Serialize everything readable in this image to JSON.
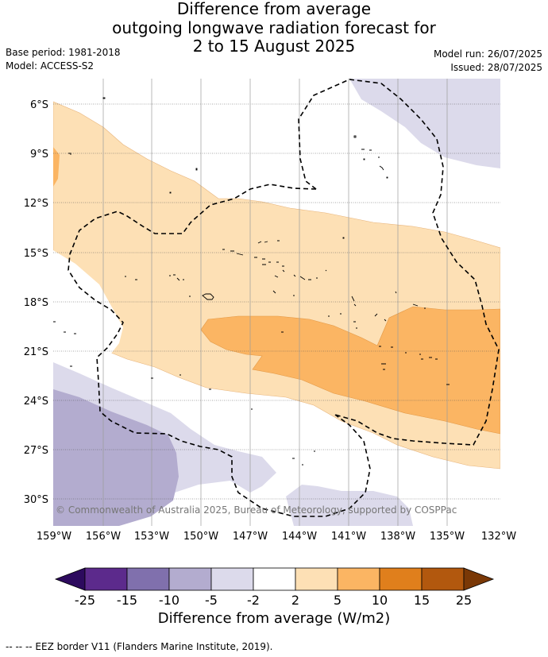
{
  "title_lines": [
    "Difference from average",
    "outgoing longwave radiation forecast for",
    "2 to 15 August 2025"
  ],
  "meta_left": [
    "Base period: 1981-2018",
    "Model: ACCESS-S2"
  ],
  "meta_right": [
    "Model run: 26/07/2025",
    "Issued: 28/07/2025"
  ],
  "lat_labels": [
    "6°S",
    "9°S",
    "12°S",
    "15°S",
    "18°S",
    "21°S",
    "24°S",
    "27°S",
    "30°S"
  ],
  "lon_labels": [
    "159°W",
    "156°W",
    "153°W",
    "150°W",
    "147°W",
    "144°W",
    "141°W",
    "138°W",
    "135°W",
    "132°W"
  ],
  "copyright": "© Commonwealth of Australia 2025, Bureau of Meteorology, supported by COSPPac",
  "colorbar": {
    "ticks": [
      "-25",
      "-15",
      "-10",
      "-5",
      "-2",
      "2",
      "5",
      "10",
      "15",
      "25"
    ],
    "colors": [
      "#2d0a5e",
      "#5c2a8c",
      "#8070ad",
      "#b3accf",
      "#dcdaeb",
      "#ffffff",
      "#fde0b5",
      "#fbb563",
      "#e07f1c",
      "#b2580e",
      "#7a3806"
    ],
    "label": "Difference from average (W/m2)"
  },
  "footer": "-- -- -- EEZ border V11 (Flanders Marine Institute, 2019)."
}
